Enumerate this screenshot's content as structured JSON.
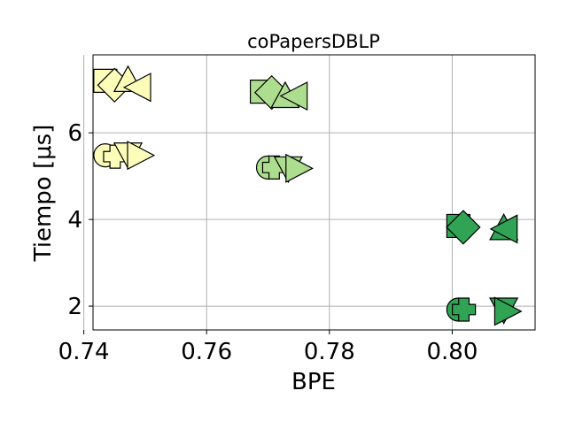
{
  "chart_data": {
    "type": "scatter",
    "title": "coPapersDBLP",
    "xlabel": "BPE",
    "ylabel": "Tiempo [μs]",
    "xlim": [
      0.7415,
      0.8135
    ],
    "ylim": [
      1.45,
      7.8
    ],
    "xticks": [
      0.74,
      0.76,
      0.78,
      0.8
    ],
    "xtick_labels": [
      "0.74",
      "0.76",
      "0.78",
      "0.80"
    ],
    "yticks": [
      2,
      4,
      6
    ],
    "ytick_labels": [
      "2",
      "4",
      "6"
    ],
    "grid": true,
    "legend": "none",
    "colors": {
      "light": "#fbfdb8",
      "mid": "#addd8e",
      "dark": "#31a354",
      "edge": "#000000",
      "grid": "#b0b0b0"
    },
    "points": [
      {
        "x": 0.7435,
        "y": 7.2,
        "marker": "square",
        "color": "light"
      },
      {
        "x": 0.745,
        "y": 7.1,
        "marker": "diamond",
        "color": "light"
      },
      {
        "x": 0.7472,
        "y": 7.22,
        "marker": "triangle-up",
        "color": "light"
      },
      {
        "x": 0.749,
        "y": 7.05,
        "marker": "triangle-left",
        "color": "light"
      },
      {
        "x": 0.7435,
        "y": 5.48,
        "marker": "circle",
        "color": "light"
      },
      {
        "x": 0.7451,
        "y": 5.45,
        "marker": "plus",
        "color": "light"
      },
      {
        "x": 0.7472,
        "y": 5.5,
        "marker": "triangle-down",
        "color": "light"
      },
      {
        "x": 0.749,
        "y": 5.48,
        "marker": "triangle-right",
        "color": "light"
      },
      {
        "x": 0.769,
        "y": 6.95,
        "marker": "square",
        "color": "mid"
      },
      {
        "x": 0.7706,
        "y": 6.93,
        "marker": "diamond",
        "color": "mid"
      },
      {
        "x": 0.7728,
        "y": 6.85,
        "marker": "triangle-up",
        "color": "mid"
      },
      {
        "x": 0.7745,
        "y": 6.85,
        "marker": "triangle-left",
        "color": "mid"
      },
      {
        "x": 0.77,
        "y": 5.2,
        "marker": "circle",
        "color": "mid"
      },
      {
        "x": 0.771,
        "y": 5.2,
        "marker": "plus",
        "color": "mid"
      },
      {
        "x": 0.7733,
        "y": 5.18,
        "marker": "triangle-down",
        "color": "mid"
      },
      {
        "x": 0.7748,
        "y": 5.18,
        "marker": "triangle-right",
        "color": "mid"
      },
      {
        "x": 0.801,
        "y": 3.85,
        "marker": "square",
        "color": "dark"
      },
      {
        "x": 0.8018,
        "y": 3.82,
        "marker": "diamond",
        "color": "dark"
      },
      {
        "x": 0.8084,
        "y": 3.8,
        "marker": "triangle-up",
        "color": "dark"
      },
      {
        "x": 0.8087,
        "y": 3.78,
        "marker": "triangle-left",
        "color": "dark"
      },
      {
        "x": 0.801,
        "y": 1.92,
        "marker": "circle",
        "color": "dark"
      },
      {
        "x": 0.8019,
        "y": 1.92,
        "marker": "plus",
        "color": "dark"
      },
      {
        "x": 0.8084,
        "y": 1.92,
        "marker": "triangle-down",
        "color": "dark"
      },
      {
        "x": 0.8088,
        "y": 1.88,
        "marker": "triangle-right",
        "color": "dark"
      }
    ]
  }
}
